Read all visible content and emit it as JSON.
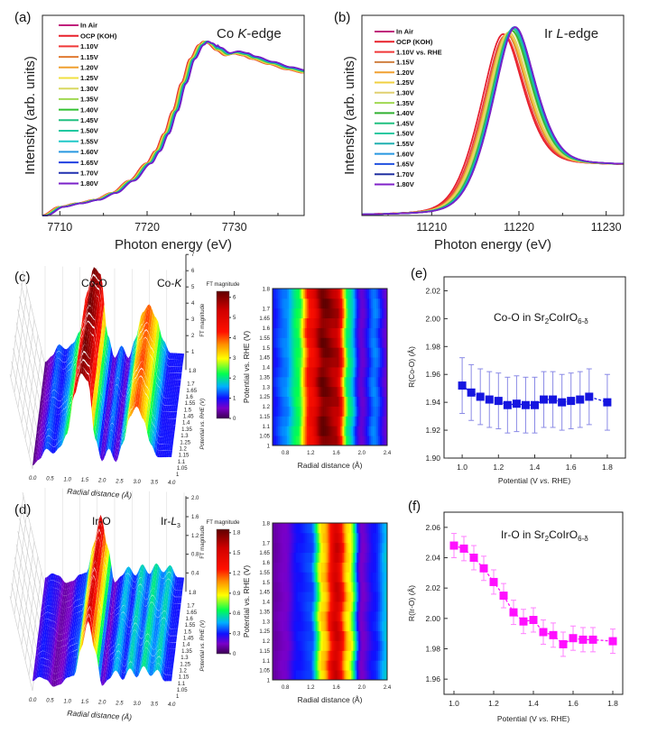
{
  "panels": {
    "a": {
      "label": "(a)",
      "title_parts": [
        "Co ",
        "K",
        "-edge"
      ]
    },
    "b": {
      "label": "(b)",
      "title_parts": [
        "Ir ",
        "L",
        "-edge"
      ]
    },
    "c": {
      "label": "(c)",
      "peak_label": "Co-O",
      "edge_label_parts": [
        "Co-",
        "K",
        ""
      ]
    },
    "d": {
      "label": "(d)",
      "peak_label": "Ir-O",
      "edge_label_parts": [
        "Ir-",
        "L",
        "3"
      ]
    },
    "e": {
      "label": "(e)",
      "annotation_parts": [
        "Co-O in Sr",
        "2",
        "CoIrO",
        "6-δ"
      ]
    },
    "f": {
      "label": "(f)",
      "annotation_parts": [
        "Ir-O in Sr",
        "2",
        "CoIrO",
        "6-δ"
      ]
    }
  },
  "chart_data": [
    {
      "id": "a",
      "type": "line",
      "xlabel": "Photon energy (eV)",
      "ylabel": "Intensity (arb. units)",
      "xlim": [
        7708,
        7738
      ],
      "ylim": [
        0,
        1.15
      ],
      "xticks": [
        7710,
        7720,
        7730
      ],
      "legend_position": "top-left",
      "base_curve": {
        "x": [
          7708,
          7710,
          7712,
          7714,
          7716,
          7718,
          7720,
          7721,
          7722,
          7723,
          7724,
          7725,
          7726,
          7726.5,
          7727,
          7728,
          7729,
          7730,
          7731,
          7732,
          7734,
          7736,
          7738
        ],
        "y": [
          0.0,
          0.05,
          0.07,
          0.09,
          0.13,
          0.2,
          0.3,
          0.37,
          0.47,
          0.6,
          0.76,
          0.9,
          0.98,
          1.0,
          0.99,
          0.95,
          0.92,
          0.93,
          0.92,
          0.9,
          0.87,
          0.84,
          0.82
        ]
      },
      "series": [
        {
          "name": "In Air",
          "color": "#c0207c",
          "edge_shift_eV": 0.0
        },
        {
          "name": "OCP (KOH)",
          "color": "#e8202a",
          "edge_shift_eV": -0.1
        },
        {
          "name": "1.10V",
          "color": "#f03838",
          "edge_shift_eV": -0.05
        },
        {
          "name": "1.15V",
          "color": "#e07a30",
          "edge_shift_eV": 0.0
        },
        {
          "name": "1.20V",
          "color": "#f0a030",
          "edge_shift_eV": 0.05
        },
        {
          "name": "1.25V",
          "color": "#f0e040",
          "edge_shift_eV": 0.1
        },
        {
          "name": "1.30V",
          "color": "#d8d860",
          "edge_shift_eV": 0.15
        },
        {
          "name": "1.35V",
          "color": "#a0d850",
          "edge_shift_eV": 0.2
        },
        {
          "name": "1.40V",
          "color": "#30c030",
          "edge_shift_eV": 0.25
        },
        {
          "name": "1.45V",
          "color": "#20c080",
          "edge_shift_eV": 0.3
        },
        {
          "name": "1.50V",
          "color": "#20c8a0",
          "edge_shift_eV": 0.35
        },
        {
          "name": "1.55V",
          "color": "#20c8c8",
          "edge_shift_eV": 0.38
        },
        {
          "name": "1.60V",
          "color": "#2898e0",
          "edge_shift_eV": 0.42
        },
        {
          "name": "1.65V",
          "color": "#2040e0",
          "edge_shift_eV": 0.45
        },
        {
          "name": "1.70V",
          "color": "#2030b0",
          "edge_shift_eV": 0.48
        },
        {
          "name": "1.80V",
          "color": "#7a20c8",
          "edge_shift_eV": 0.5
        }
      ]
    },
    {
      "id": "b",
      "type": "line",
      "xlabel": "Photon energy (eV)",
      "ylabel": "Intensity (arb. units)",
      "xlim": [
        11202,
        11232
      ],
      "ylim": [
        0,
        1.0
      ],
      "xticks": [
        11210,
        11220,
        11230
      ],
      "legend_position": "top-left",
      "tail_level": 0.25,
      "series": [
        {
          "name": "In Air",
          "color": "#c0207c",
          "peak_eV": 11218.1,
          "peak_height": 0.86
        },
        {
          "name": "OCP (KOH)",
          "color": "#e8202a",
          "peak_eV": 11218.1,
          "peak_height": 0.86
        },
        {
          "name": "1.10V vs. RHE",
          "color": "#f03838",
          "peak_eV": 11218.3,
          "peak_height": 0.85
        },
        {
          "name": "1.15V",
          "color": "#d08040",
          "peak_eV": 11218.5,
          "peak_height": 0.86
        },
        {
          "name": "1.20V",
          "color": "#f0a030",
          "peak_eV": 11218.6,
          "peak_height": 0.86
        },
        {
          "name": "1.25V",
          "color": "#f0d040",
          "peak_eV": 11218.7,
          "peak_height": 0.87
        },
        {
          "name": "1.30V",
          "color": "#e0d070",
          "peak_eV": 11218.8,
          "peak_height": 0.87
        },
        {
          "name": "1.35V",
          "color": "#a0d850",
          "peak_eV": 11219.0,
          "peak_height": 0.88
        },
        {
          "name": "1.40V",
          "color": "#30b030",
          "peak_eV": 11219.1,
          "peak_height": 0.88
        },
        {
          "name": "1.45V",
          "color": "#20c080",
          "peak_eV": 11219.2,
          "peak_height": 0.89
        },
        {
          "name": "1.50V",
          "color": "#20c8a0",
          "peak_eV": 11219.3,
          "peak_height": 0.89
        },
        {
          "name": "1.55V",
          "color": "#20b0b0",
          "peak_eV": 11219.35,
          "peak_height": 0.9
        },
        {
          "name": "1.60V",
          "color": "#2898e0",
          "peak_eV": 11219.4,
          "peak_height": 0.9
        },
        {
          "name": "1.65V",
          "color": "#2050e0",
          "peak_eV": 11219.45,
          "peak_height": 0.9
        },
        {
          "name": "1.70V",
          "color": "#2030a0",
          "peak_eV": 11219.5,
          "peak_height": 0.9
        },
        {
          "name": "1.80V",
          "color": "#8020c8",
          "peak_eV": 11219.5,
          "peak_height": 0.9
        }
      ]
    },
    {
      "id": "c",
      "type": "heatmap",
      "surface_3d": {
        "xlabel": "Radial distance (Å)",
        "ylabel": "Potential vs. RHE (V)",
        "zlabel": "FT magnitude",
        "xticks": [
          "0.0",
          "0.5",
          "1.0",
          "1.5",
          "2.0",
          "2.5",
          "3.0",
          "3.5",
          "4.0"
        ],
        "yticks": [
          "1",
          "1.05",
          "1.1",
          "1.15",
          "1.2",
          "1.25",
          "1.3",
          "1.35",
          "1.4",
          "1.45",
          "1.5",
          "1.55",
          "1.6",
          "1.65",
          "1.7",
          "1.8"
        ],
        "zticks": [
          "1",
          "2",
          "3",
          "4",
          "5",
          "6",
          "7"
        ]
      },
      "contour": {
        "xlabel": "Radial distance (Å)",
        "ylabel": "Potential vs. RHE (V)",
        "xlim": [
          0.6,
          2.4
        ],
        "ylim": [
          1,
          1.8
        ],
        "xticks": [
          "0.8",
          "1.2",
          "1.6",
          "2.0",
          "2.4"
        ],
        "yticks": [
          "1",
          "1.05",
          "1.1",
          "1.15",
          "1.2",
          "1.25",
          "1.3",
          "1.35",
          "1.4",
          "1.45",
          "1.5",
          "1.55",
          "1.6",
          "1.65",
          "1.7",
          "1.8"
        ]
      },
      "colorbar": {
        "title": "FT magnitude",
        "range": [
          0,
          6.3
        ],
        "ticks": [
          "0",
          "1",
          "2",
          "3",
          "4",
          "5",
          "6"
        ]
      },
      "profile": {
        "R": [
          0,
          0.2,
          0.4,
          0.6,
          0.8,
          1.0,
          1.2,
          1.4,
          1.6,
          1.8,
          2.0,
          2.2,
          2.4,
          2.6,
          2.8,
          3.0,
          3.2,
          3.4,
          3.6,
          3.8,
          4.0
        ],
        "FT": [
          0.2,
          0.6,
          1.3,
          1.0,
          1.4,
          2.2,
          4.6,
          6.1,
          5.6,
          2.0,
          0.6,
          1.4,
          0.6,
          1.8,
          3.4,
          4.0,
          3.2,
          1.8,
          1.0,
          1.0,
          1.0
        ]
      }
    },
    {
      "id": "d",
      "type": "heatmap",
      "surface_3d": {
        "xlabel": "Radial distance (Å)",
        "ylabel": "Potential vs. RHE (V)",
        "zlabel": "FT magnitude",
        "xticks": [
          "0.0",
          "0.5",
          "1.0",
          "1.5",
          "2.0",
          "2.5",
          "3.0",
          "3.5",
          "4.0"
        ],
        "yticks": [
          "1",
          "1.05",
          "1.1",
          "1.15",
          "1.2",
          "1.25",
          "1.3",
          "1.35",
          "1.4",
          "1.45",
          "1.5",
          "1.55",
          "1.6",
          "1.65",
          "1.7",
          "1.8"
        ],
        "zticks": [
          "0.4",
          "0.8",
          "1.2",
          "1.6",
          "2.0"
        ]
      },
      "contour": {
        "xlabel": "Radial distance (Å)",
        "ylabel": "Potential vs. RHE (V)",
        "xlim": [
          0.6,
          2.4
        ],
        "ylim": [
          1,
          1.8
        ],
        "xticks": [
          "0.8",
          "1.2",
          "1.6",
          "2.0",
          "2.4"
        ],
        "yticks": [
          "1",
          "1.05",
          "1.1",
          "1.15",
          "1.2",
          "1.25",
          "1.3",
          "1.35",
          "1.4",
          "1.45",
          "1.5",
          "1.55",
          "1.6",
          "1.65",
          "1.7",
          "1.8"
        ]
      },
      "colorbar": {
        "title": "FT magnitude",
        "range": [
          0,
          1.85
        ],
        "ticks": [
          "0",
          "0.3",
          "0.6",
          "0.9",
          "1.2",
          "1.5",
          "1.8"
        ]
      },
      "profile": {
        "R": [
          0,
          0.2,
          0.4,
          0.6,
          0.8,
          1.0,
          1.2,
          1.4,
          1.6,
          1.8,
          2.0,
          2.2,
          2.4,
          2.6,
          2.8,
          3.0,
          3.2,
          3.4,
          3.6,
          3.8,
          4.0
        ],
        "FT": [
          0.2,
          0.3,
          0.25,
          0.1,
          0.15,
          0.3,
          0.35,
          0.95,
          1.55,
          0.9,
          0.15,
          0.3,
          0.5,
          0.3,
          0.55,
          0.35,
          0.6,
          0.4,
          0.55,
          0.3,
          0.3
        ]
      }
    },
    {
      "id": "e",
      "type": "scatter",
      "xlabel_parts": [
        "Potential (V ",
        "vs.",
        " RHE)"
      ],
      "ylabel": "R(Co-O) (Å)",
      "xlim": [
        0.9,
        1.9
      ],
      "ylim": [
        1.9,
        2.03
      ],
      "xticks": [
        "1.0",
        "1.2",
        "1.4",
        "1.6",
        "1.8"
      ],
      "yticks": [
        "1.90",
        "1.92",
        "1.94",
        "1.96",
        "1.98",
        "2.00",
        "2.02"
      ],
      "marker_color": "#1515e0",
      "errorbar_color": "#8a8ae6",
      "x": [
        1.0,
        1.05,
        1.1,
        1.15,
        1.2,
        1.25,
        1.3,
        1.35,
        1.4,
        1.45,
        1.5,
        1.55,
        1.6,
        1.65,
        1.7,
        1.8
      ],
      "y": [
        1.952,
        1.947,
        1.944,
        1.942,
        1.941,
        1.938,
        1.939,
        1.938,
        1.938,
        1.942,
        1.942,
        1.94,
        1.941,
        1.942,
        1.944,
        1.94
      ],
      "yerr": [
        0.02,
        0.02,
        0.02,
        0.02,
        0.02,
        0.02,
        0.02,
        0.02,
        0.02,
        0.02,
        0.02,
        0.02,
        0.02,
        0.02,
        0.02,
        0.02
      ]
    },
    {
      "id": "f",
      "type": "scatter",
      "xlabel_parts": [
        "Potential (V ",
        "vs.",
        " RHE)"
      ],
      "ylabel": "R(Ir-O)  (Å)",
      "xlim": [
        0.95,
        1.85
      ],
      "ylim": [
        1.95,
        2.07
      ],
      "xticks": [
        "1.0",
        "1.2",
        "1.4",
        "1.6",
        "1.8"
      ],
      "yticks": [
        "1.96",
        "1.98",
        "2.00",
        "2.02",
        "2.04",
        "2.06"
      ],
      "marker_color": "#ff10ff",
      "errorbar_color": "#ff80ff",
      "x": [
        1.0,
        1.05,
        1.1,
        1.15,
        1.2,
        1.25,
        1.3,
        1.35,
        1.4,
        1.45,
        1.5,
        1.55,
        1.6,
        1.65,
        1.7,
        1.8
      ],
      "y": [
        2.048,
        2.046,
        2.04,
        2.033,
        2.024,
        2.015,
        2.004,
        1.998,
        1.999,
        1.991,
        1.989,
        1.983,
        1.987,
        1.986,
        1.986,
        1.985
      ],
      "yerr": [
        0.008,
        0.008,
        0.008,
        0.008,
        0.008,
        0.008,
        0.008,
        0.008,
        0.008,
        0.008,
        0.008,
        0.008,
        0.008,
        0.008,
        0.008,
        0.008
      ]
    }
  ]
}
